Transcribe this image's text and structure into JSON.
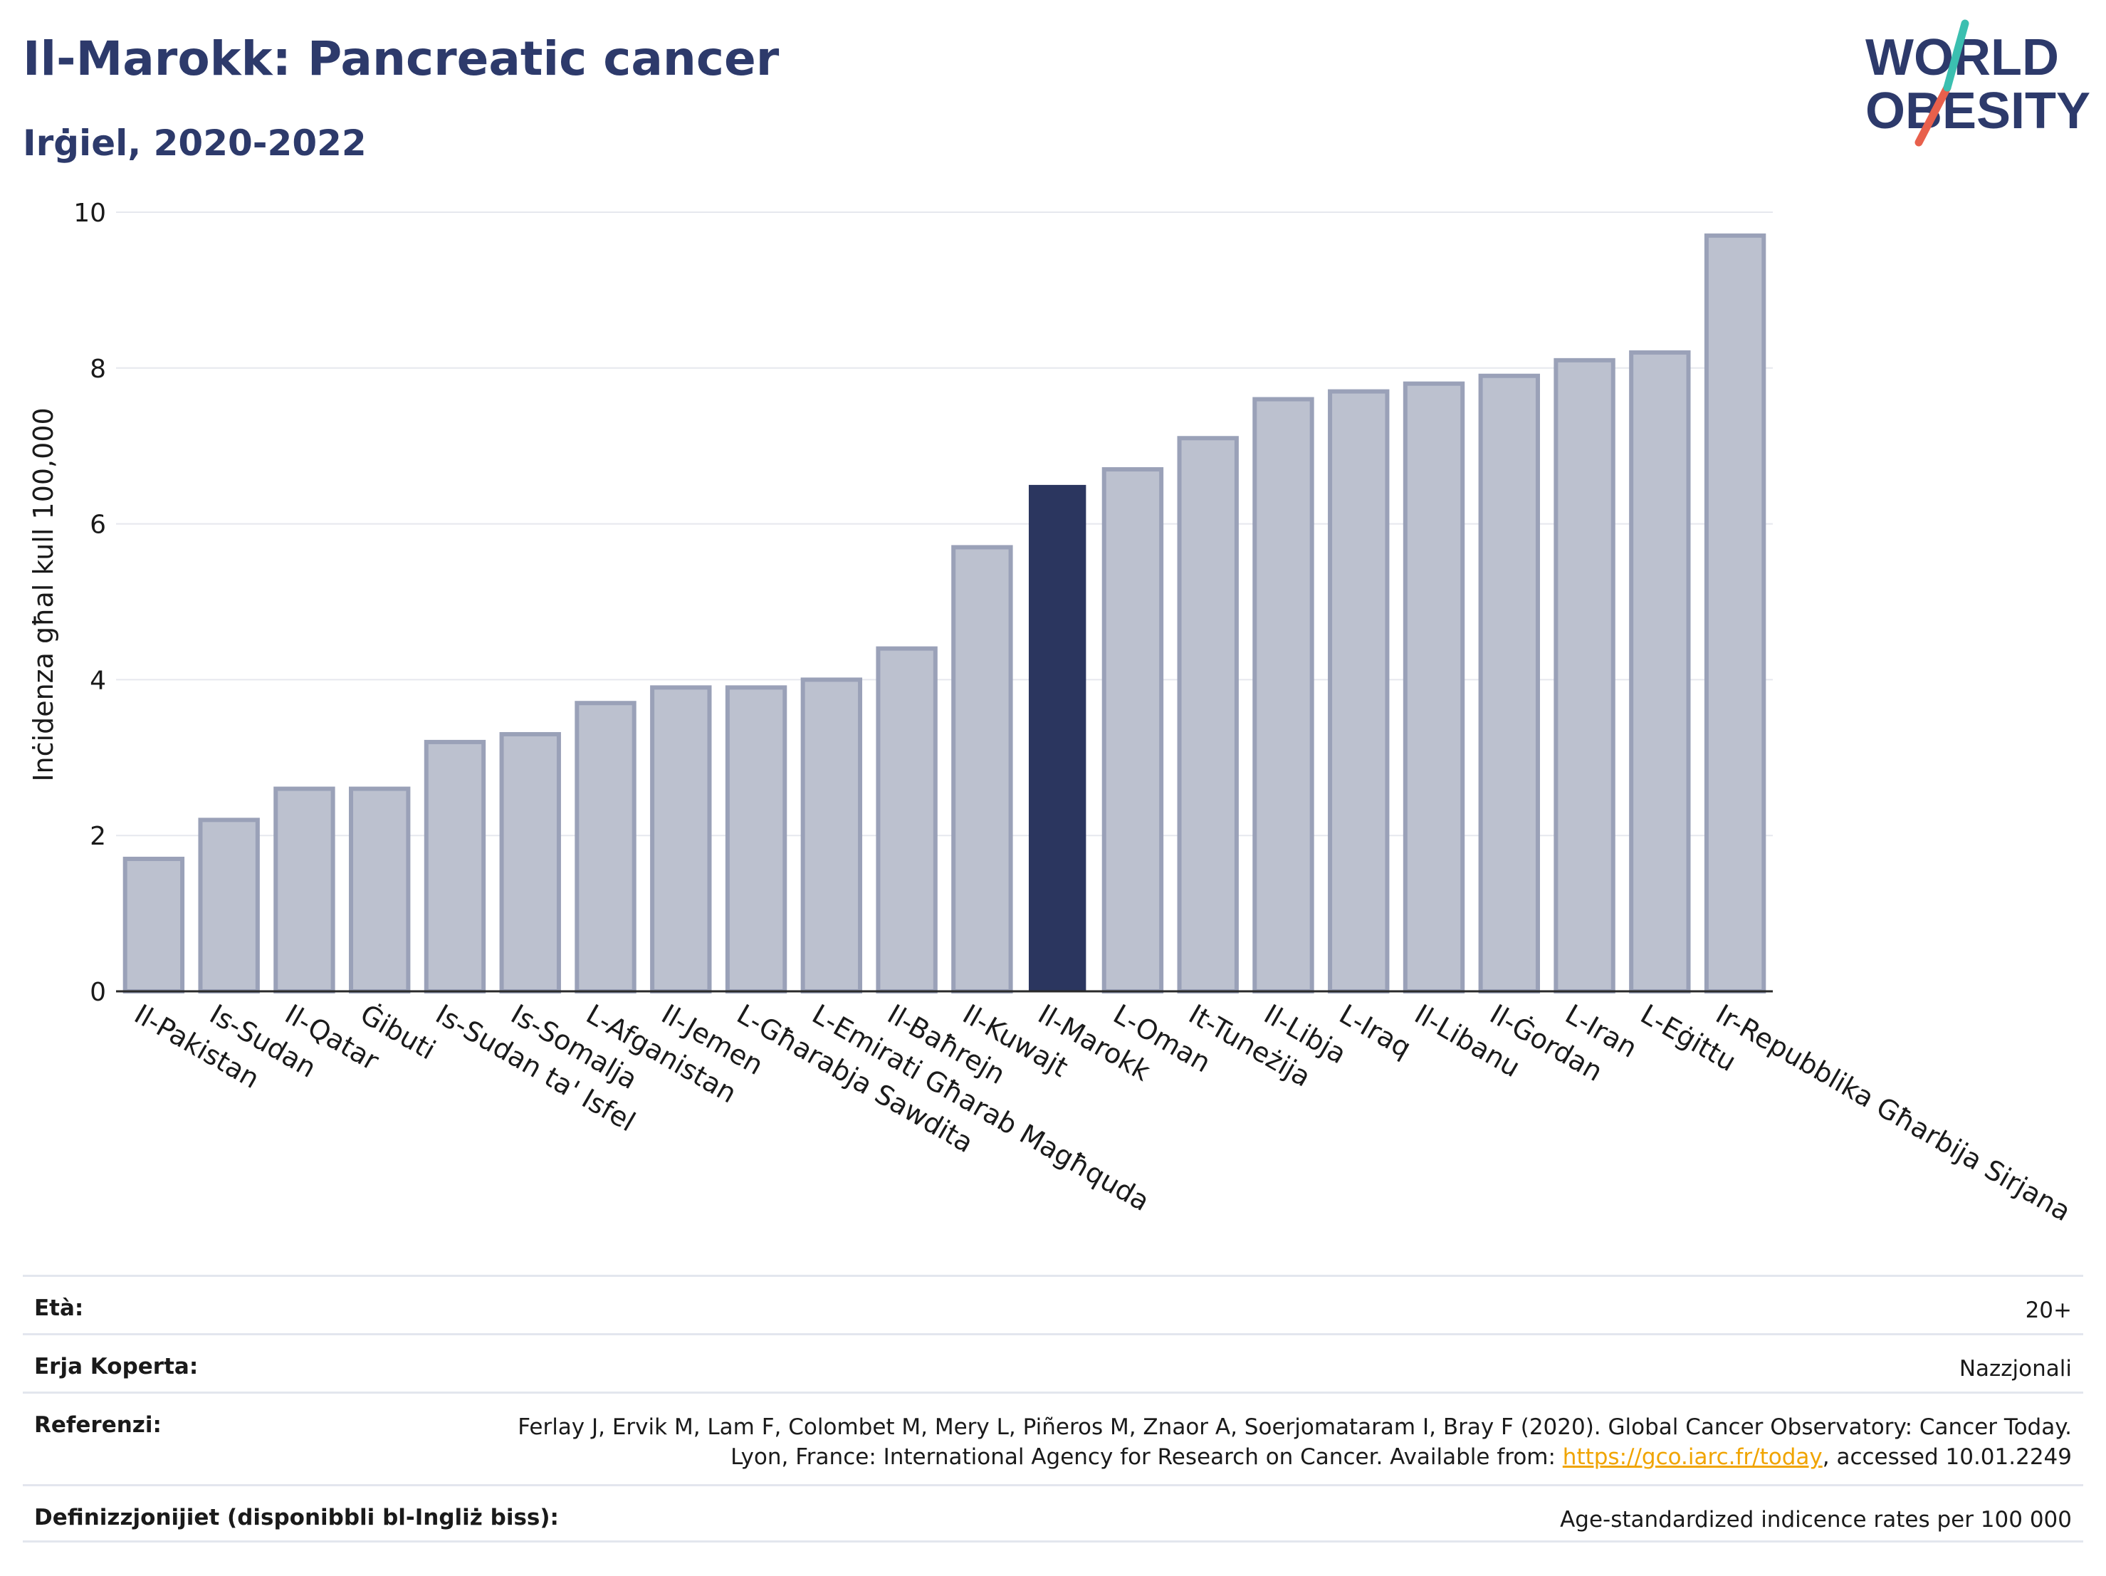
{
  "header": {
    "title": "Il-Marokk: Pancreatic cancer",
    "subtitle": "Irġiel, 2020-2022"
  },
  "logo": {
    "line1": "WORLD",
    "line2": "OBESITY",
    "accent_teal": "#3bbfb0",
    "accent_red": "#e8604c",
    "text_color": "#2d3a6b"
  },
  "chart_data": {
    "type": "bar",
    "ylabel": "Inċidenza għal kull 100,000",
    "ylim": [
      0,
      10
    ],
    "yticks": [
      "0",
      "2",
      "4",
      "6",
      "8",
      "10"
    ],
    "grid": true,
    "highlight": "Il-Marokk",
    "colors": {
      "bar": "#bcc1cf",
      "bar_edge": "#9aa1b8",
      "highlight": "#2b365f"
    },
    "categories": [
      "Il-Pakistan",
      "Is-Sudan",
      "Il-Qatar",
      "Ġibuti",
      "Is-Sudan ta' Isfel",
      "Is-Somalja",
      "L-Afganistan",
      "Il-Jemen",
      "L-Għarabja Sawdita",
      "L-Emirati Għarab Magħquda",
      "Il-Baħrejn",
      "Il-Kuwajt",
      "Il-Marokk",
      "L-Oman",
      "It-Tuneżija",
      "Il-Libja",
      "L-Iraq",
      "Il-Libanu",
      "Il-Ġordan",
      "L-Iran",
      "L-Eġittu",
      "Ir-Repubblika Għarbija Sirjana"
    ],
    "values": [
      1.7,
      2.2,
      2.6,
      2.6,
      3.2,
      3.3,
      3.7,
      3.9,
      3.9,
      4.0,
      4.4,
      5.7,
      6.5,
      6.7,
      7.1,
      7.6,
      7.7,
      7.8,
      7.9,
      8.1,
      8.2,
      9.7
    ]
  },
  "info": {
    "age_label": "Età:",
    "age_value": "20+",
    "area_label": "Erja Koperta:",
    "area_value": "Nazzjonali",
    "ref_label": "Referenzi:",
    "ref_text_1": "Ferlay J, Ervik M, Lam F, Colombet M, Mery L, Piñeros M, Znaor A, Soerjomataram I, Bray F (2020). Global Cancer Observatory: Cancer Today. Lyon, France: International Agency for Research on Cancer. Available from: ",
    "ref_link": "https://gco.iarc.fr/today",
    "ref_text_2": ", accessed 10.01.2249",
    "def_label": "Definizzjonijiet (disponibbli bl-Ingliż biss):",
    "def_value": "Age-standardized indicence rates per 100 000"
  }
}
